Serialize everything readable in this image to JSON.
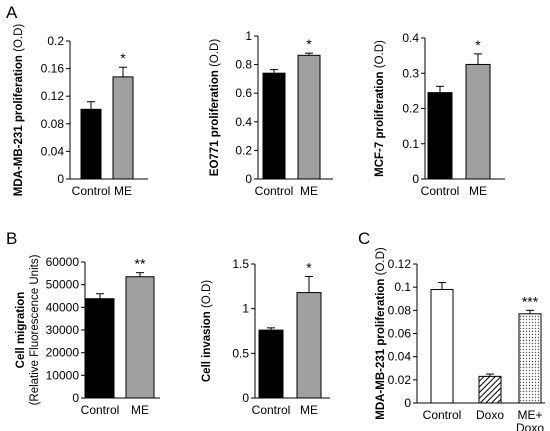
{
  "panels": {
    "a": "A",
    "b": "B",
    "c": "C"
  },
  "chart_data": [
    {
      "type": "bar",
      "panel": "A",
      "categories": [
        "Control",
        "ME"
      ],
      "values": [
        0.101,
        0.148
      ],
      "errors": [
        0.011,
        0.014
      ],
      "fills": [
        "#000000",
        "#a0a0a0"
      ],
      "significance": [
        "",
        "*"
      ],
      "ylabel_bold": "MDA-MB-231 proliferation",
      "ylabel_unit": "(O.D)",
      "ylim": [
        0,
        0.2
      ],
      "yticks": [
        "0",
        "0.04",
        "0.08",
        "0.12",
        "0.16",
        "0.2"
      ]
    },
    {
      "type": "bar",
      "panel": "A",
      "categories": [
        "Control",
        "ME"
      ],
      "values": [
        0.74,
        0.865
      ],
      "errors": [
        0.025,
        0.015
      ],
      "fills": [
        "#000000",
        "#a0a0a0"
      ],
      "significance": [
        "",
        "*"
      ],
      "ylabel_bold": "EO771 proliferation",
      "ylabel_unit": "(O.D)",
      "ylim": [
        0,
        1
      ],
      "yticks": [
        "0",
        "0.2",
        "0.4",
        "0.6",
        "0.8",
        "1"
      ]
    },
    {
      "type": "bar",
      "panel": "A",
      "categories": [
        "Control",
        "ME"
      ],
      "values": [
        0.245,
        0.325
      ],
      "errors": [
        0.018,
        0.03
      ],
      "fills": [
        "#000000",
        "#a0a0a0"
      ],
      "significance": [
        "",
        "*"
      ],
      "ylabel_bold": "MCF-7 proliferation",
      "ylabel_unit": "(O.D)",
      "ylim": [
        0,
        0.4
      ],
      "yticks": [
        "0",
        "0.1",
        "0.2",
        "0.3",
        "0.4"
      ]
    },
    {
      "type": "bar",
      "panel": "B",
      "categories": [
        "Control",
        "ME"
      ],
      "values": [
        43800,
        53500
      ],
      "errors": [
        2200,
        1800
      ],
      "fills": [
        "#000000",
        "#a0a0a0"
      ],
      "significance": [
        "",
        "**"
      ],
      "ylabel_bold": "Cell migration",
      "ylabel_unit": "(Relative Fluorescence Units)",
      "ylabel_two_line": true,
      "ylim": [
        0,
        60000
      ],
      "yticks": [
        "0",
        "10000",
        "20000",
        "30000",
        "40000",
        "50000",
        "60000"
      ]
    },
    {
      "type": "bar",
      "panel": "B",
      "categories": [
        "Control",
        "ME"
      ],
      "values": [
        0.76,
        1.18
      ],
      "errors": [
        0.025,
        0.18
      ],
      "fills": [
        "#000000",
        "#a0a0a0"
      ],
      "significance": [
        "",
        "*"
      ],
      "ylabel_bold": "Cell invasion",
      "ylabel_unit": "(O.D)",
      "ylim": [
        0,
        1.5
      ],
      "yticks": [
        "0",
        "0.5",
        "1",
        "1.5"
      ]
    },
    {
      "type": "bar",
      "panel": "C",
      "categories": [
        "Control",
        "Doxo",
        "ME+ Doxo"
      ],
      "category_lines": [
        [
          "Control"
        ],
        [
          "Doxo"
        ],
        [
          "ME+",
          "Doxo"
        ]
      ],
      "values": [
        0.098,
        0.023,
        0.077
      ],
      "errors": [
        0.006,
        0.002,
        0.003
      ],
      "fills": [
        "#ffffff",
        "hatch",
        "dots"
      ],
      "significance": [
        "",
        "",
        "***"
      ],
      "ylabel_bold": "MDA-MB-231 proliferation",
      "ylabel_unit": "(O.D)",
      "ylim": [
        0,
        0.12
      ],
      "yticks": [
        "0",
        "0.02",
        "0.04",
        "0.06",
        "0.08",
        "0.1",
        "0.12"
      ]
    }
  ]
}
